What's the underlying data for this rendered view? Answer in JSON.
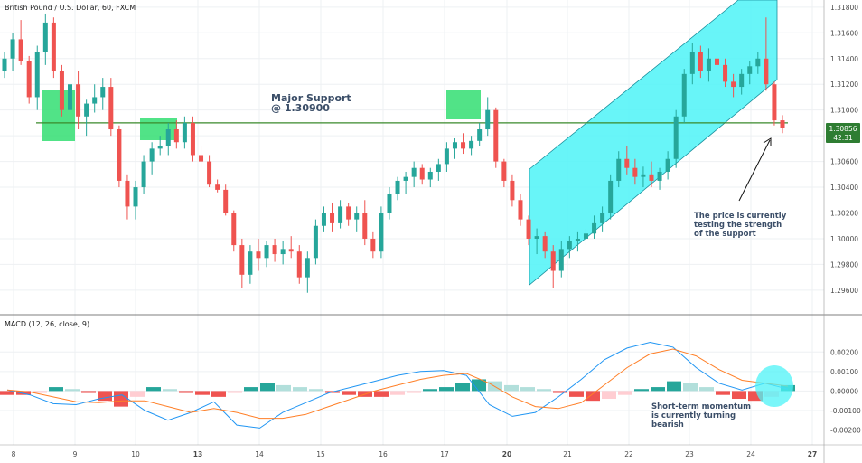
{
  "header": {
    "symbol_title": "British Pound / U.S. Dollar, 60, FXCM",
    "macd_title": "MACD (12, 26, close, 9)"
  },
  "colors": {
    "up": "#26a69a",
    "down": "#ef5350",
    "channel_fill": "#4df3f7",
    "support_line": "#3a8a2b",
    "support_box": "#3ee07a",
    "macd_line": "#2196f3",
    "signal_line": "#ff7f27",
    "hist_up_strong": "#26a69a",
    "hist_up_weak": "#b2dfdb",
    "hist_down_strong": "#ef5350",
    "hist_down_weak": "#ffcdd2",
    "price_badge": "#2e7d32"
  },
  "chart_data": [
    {
      "type": "line",
      "subtype": "candlestick",
      "title": "British Pound / U.S. Dollar, 60, FXCM",
      "x_tick_labels": [
        "8",
        "9",
        "10",
        "13",
        "14",
        "15",
        "16",
        "17",
        "20",
        "21",
        "22",
        "23",
        "24",
        "27"
      ],
      "y_tick_labels": [
        "1.31800",
        "1.31600",
        "1.31400",
        "1.31200",
        "1.31000",
        "1.30800",
        "1.30600",
        "1.30400",
        "1.30200",
        "1.30000",
        "1.29800",
        "1.29600"
      ],
      "ylim": [
        1.2955,
        1.3182
      ],
      "grid": true,
      "current_price": "1.30856",
      "countdown": "42:31",
      "support_level": 1.309,
      "series": [
        {
          "values": [
            [
              1.313,
              1.3145,
              1.3125,
              1.314
            ],
            [
              1.314,
              1.316,
              1.313,
              1.3155
            ],
            [
              1.3155,
              1.317,
              1.3135,
              1.3138
            ],
            [
              1.3138,
              1.3142,
              1.3105,
              1.311
            ],
            [
              1.311,
              1.315,
              1.31,
              1.3145
            ],
            [
              1.3145,
              1.3175,
              1.3135,
              1.3168
            ],
            [
              1.3168,
              1.3172,
              1.3125,
              1.313
            ],
            [
              1.313,
              1.3135,
              1.3095,
              1.31
            ],
            [
              1.31,
              1.3125,
              1.3085,
              1.312
            ],
            [
              1.312,
              1.313,
              1.3085,
              1.3095
            ],
            [
              1.3095,
              1.3108,
              1.308,
              1.3105
            ],
            [
              1.3105,
              1.312,
              1.3098,
              1.311
            ],
            [
              1.311,
              1.3125,
              1.31,
              1.3118
            ],
            [
              1.3118,
              1.3125,
              1.308,
              1.3085
            ],
            [
              1.3085,
              1.3088,
              1.304,
              1.3045
            ],
            [
              1.3045,
              1.305,
              1.3015,
              1.3025
            ],
            [
              1.3025,
              1.3045,
              1.3015,
              1.304
            ],
            [
              1.304,
              1.3065,
              1.3035,
              1.306
            ],
            [
              1.306,
              1.3075,
              1.305,
              1.307
            ],
            [
              1.307,
              1.308,
              1.3065,
              1.3072
            ],
            [
              1.3072,
              1.309,
              1.3065,
              1.3085
            ],
            [
              1.3085,
              1.3092,
              1.307,
              1.3075
            ],
            [
              1.3075,
              1.3095,
              1.307,
              1.309
            ],
            [
              1.309,
              1.3095,
              1.306,
              1.3065
            ],
            [
              1.3065,
              1.3072,
              1.3055,
              1.306
            ],
            [
              1.306,
              1.3065,
              1.304,
              1.3042
            ],
            [
              1.3042,
              1.3046,
              1.3036,
              1.3038
            ],
            [
              1.3038,
              1.3042,
              1.3018,
              1.302
            ],
            [
              1.302,
              1.3022,
              1.299,
              1.2995
            ],
            [
              1.2995,
              1.3,
              1.2962,
              1.2972
            ],
            [
              1.2972,
              1.2995,
              1.2965,
              1.299
            ],
            [
              1.299,
              1.3,
              1.2975,
              1.2985
            ],
            [
              1.2985,
              1.2998,
              1.2978,
              1.2995
            ],
            [
              1.2995,
              1.3,
              1.2982,
              1.2988
            ],
            [
              1.2988,
              1.2998,
              1.298,
              1.2992
            ],
            [
              1.2992,
              1.3002,
              1.2985,
              1.299
            ],
            [
              1.299,
              1.2995,
              1.2965,
              1.297
            ],
            [
              1.297,
              1.299,
              1.2958,
              1.2985
            ],
            [
              1.2985,
              1.3015,
              1.298,
              1.301
            ],
            [
              1.301,
              1.3025,
              1.3005,
              1.302
            ],
            [
              1.302,
              1.3028,
              1.3005,
              1.3012
            ],
            [
              1.3012,
              1.303,
              1.3008,
              1.3025
            ],
            [
              1.3025,
              1.3028,
              1.301,
              1.3015
            ],
            [
              1.3015,
              1.3025,
              1.3005,
              1.302
            ],
            [
              1.302,
              1.303,
              1.2995,
              1.3
            ],
            [
              1.3,
              1.3005,
              1.2985,
              1.299
            ],
            [
              1.299,
              1.3025,
              1.2985,
              1.302
            ],
            [
              1.302,
              1.304,
              1.3015,
              1.3035
            ],
            [
              1.3035,
              1.3048,
              1.303,
              1.3045
            ],
            [
              1.3045,
              1.3052,
              1.3035,
              1.3048
            ],
            [
              1.3048,
              1.306,
              1.304,
              1.3055
            ],
            [
              1.3055,
              1.3058,
              1.3042,
              1.3046
            ],
            [
              1.3046,
              1.3055,
              1.304,
              1.3052
            ],
            [
              1.3052,
              1.3062,
              1.3045,
              1.3058
            ],
            [
              1.3058,
              1.3075,
              1.3052,
              1.307
            ],
            [
              1.307,
              1.3078,
              1.3062,
              1.3075
            ],
            [
              1.3075,
              1.3082,
              1.3066,
              1.307
            ],
            [
              1.307,
              1.308,
              1.3065,
              1.3076
            ],
            [
              1.3076,
              1.309,
              1.3072,
              1.3085
            ],
            [
              1.3085,
              1.311,
              1.308,
              1.31
            ],
            [
              1.31,
              1.3102,
              1.3055,
              1.306
            ],
            [
              1.306,
              1.3062,
              1.304,
              1.3045
            ],
            [
              1.3045,
              1.305,
              1.3025,
              1.303
            ],
            [
              1.303,
              1.3035,
              1.301,
              1.3015
            ],
            [
              1.3015,
              1.3018,
              1.2995,
              1.3
            ],
            [
              1.3,
              1.3008,
              1.2988,
              1.3002
            ],
            [
              1.3002,
              1.3005,
              1.2985,
              1.299
            ],
            [
              1.299,
              1.2995,
              1.2962,
              1.2975
            ],
            [
              1.2975,
              1.2998,
              1.297,
              1.2992
            ],
            [
              1.2992,
              1.3002,
              1.2985,
              1.2998
            ],
            [
              1.2998,
              1.3005,
              1.299,
              1.3
            ],
            [
              1.3,
              1.3008,
              1.2995,
              1.3004
            ],
            [
              1.3004,
              1.3018,
              1.3,
              1.3012
            ],
            [
              1.3012,
              1.3025,
              1.3005,
              1.302
            ],
            [
              1.302,
              1.305,
              1.3015,
              1.3045
            ],
            [
              1.3045,
              1.3068,
              1.304,
              1.3062
            ],
            [
              1.3062,
              1.3072,
              1.305,
              1.3055
            ],
            [
              1.3055,
              1.3062,
              1.3042,
              1.3048
            ],
            [
              1.3048,
              1.3056,
              1.304,
              1.305
            ],
            [
              1.305,
              1.306,
              1.304,
              1.3045
            ],
            [
              1.3045,
              1.3055,
              1.3038,
              1.3052
            ],
            [
              1.3052,
              1.3068,
              1.3046,
              1.3062
            ],
            [
              1.3062,
              1.31,
              1.3055,
              1.3095
            ],
            [
              1.3095,
              1.3132,
              1.309,
              1.3128
            ],
            [
              1.3128,
              1.3152,
              1.312,
              1.3145
            ],
            [
              1.3145,
              1.315,
              1.3125,
              1.313
            ],
            [
              1.313,
              1.3148,
              1.3122,
              1.314
            ],
            [
              1.314,
              1.315,
              1.3128,
              1.3135
            ],
            [
              1.3135,
              1.314,
              1.3118,
              1.3122
            ],
            [
              1.3122,
              1.3128,
              1.311,
              1.3118
            ],
            [
              1.3118,
              1.3132,
              1.3112,
              1.3128
            ],
            [
              1.3128,
              1.3138,
              1.312,
              1.3134
            ],
            [
              1.3134,
              1.3145,
              1.3128,
              1.314
            ],
            [
              1.314,
              1.3172,
              1.3115,
              1.312
            ],
            [
              1.312,
              1.3122,
              1.3088,
              1.3092
            ],
            [
              1.3092,
              1.3096,
              1.3082,
              1.3086
            ]
          ]
        },
        {
          "name": "MACD",
          "values": [
            5e-05,
            -0.0002,
            -0.00065,
            -0.0007,
            -0.0004,
            -0.0002,
            -0.001,
            -0.0015,
            -0.0011,
            -0.00055,
            -0.00175,
            -0.0019,
            -0.0011,
            -0.0006,
            -0.0001,
            0.0002,
            0.0005,
            0.0008,
            0.001,
            0.00105,
            0.0008,
            -0.0007,
            -0.0013,
            -0.0011,
            -0.0003,
            0.0006,
            0.0016,
            0.0022,
            0.0025,
            0.00225,
            0.0012,
            0.0004,
            5e-05,
            0.0004,
            0.0001
          ]
        },
        {
          "name": "Signal",
          "values": [
            5e-05,
            -5e-05,
            -0.0003,
            -0.00055,
            -0.0006,
            -0.0005,
            -0.0005,
            -0.0008,
            -0.0011,
            -0.0009,
            -0.0011,
            -0.0014,
            -0.0014,
            -0.0012,
            -0.0008,
            -0.0004,
            0.0,
            0.0003,
            0.0006,
            0.0008,
            0.0009,
            0.0004,
            -0.0003,
            -0.0008,
            -0.0009,
            -0.0006,
            0.0003,
            0.0012,
            0.0019,
            0.00215,
            0.0018,
            0.0011,
            0.00055,
            0.0004,
            0.00025
          ]
        }
      ],
      "annotations": [
        {
          "lines": [
            "Major Support",
            "@ 1.30900"
          ]
        },
        {
          "lines": [
            "The price is currently",
            "testing the strength",
            "of the support"
          ]
        },
        {
          "lines": [
            "Short-term momentum",
            "is currently turning",
            "bearish"
          ]
        }
      ]
    },
    {
      "type": "bar",
      "title": "MACD (12, 26, close, 9)",
      "y_tick_labels": [
        "0.00200",
        "0.00100",
        "0.00000",
        "-0.00100",
        "-0.00200"
      ],
      "ylim": [
        -0.0023,
        0.0028
      ],
      "values": [
        -0.0002,
        -0.0002,
        -0.0001,
        0.0002,
        0.0001,
        -0.0001,
        -0.0005,
        -0.0008,
        -0.0003,
        0.0002,
        0.0001,
        -0.0001,
        -0.0002,
        -0.0003,
        -0.0001,
        0.0002,
        0.0004,
        0.0003,
        0.0002,
        0.0001,
        -0.0001,
        -0.0002,
        -0.0003,
        -0.0003,
        -0.0002,
        -0.0001,
        0.0001,
        0.0002,
        0.0004,
        0.0006,
        0.0005,
        0.0003,
        0.0002,
        0.0001,
        -0.0001,
        -0.0003,
        -0.0005,
        -0.0004,
        -0.0002,
        0.0001,
        0.0002,
        0.0005,
        0.0004,
        0.0002,
        -0.0002,
        -0.0004,
        -0.0005,
        -0.0003,
        0.0003
      ]
    }
  ]
}
